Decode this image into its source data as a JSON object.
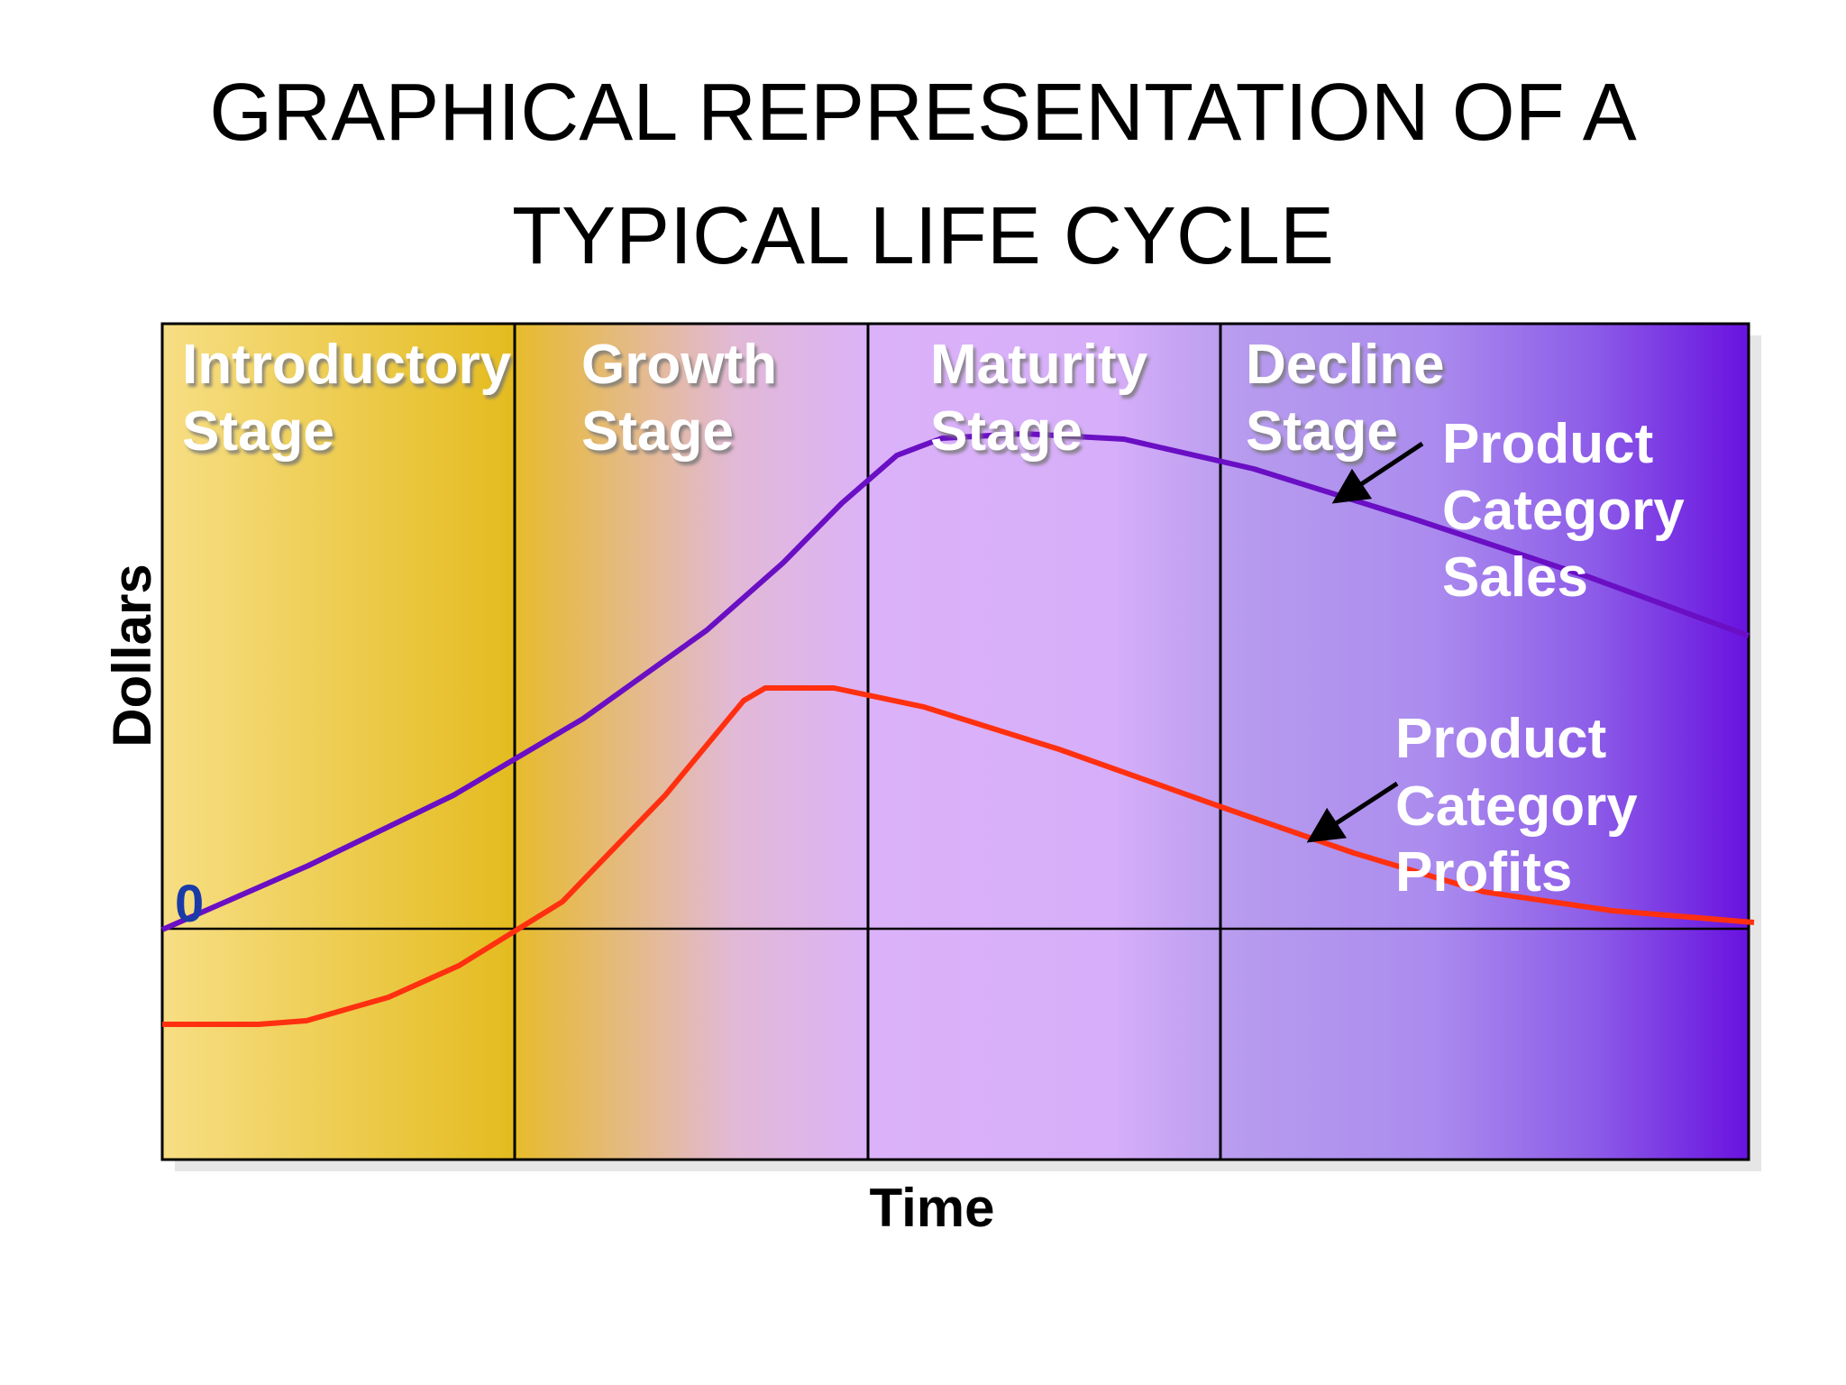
{
  "title": {
    "lines": [
      "GRAPHICAL REPRESENTATION OF A",
      "TYPICAL LIFE CYCLE"
    ]
  },
  "stages": [
    {
      "lines": [
        "Introductory",
        "Stage"
      ]
    },
    {
      "lines": [
        "Growth",
        "Stage"
      ]
    },
    {
      "lines": [
        "Maturity",
        "Stage"
      ]
    },
    {
      "lines": [
        "Decline",
        "Stage"
      ]
    }
  ],
  "curves": [
    {
      "lines": [
        "Product",
        "Category",
        "Sales"
      ]
    },
    {
      "lines": [
        "Product",
        "Category",
        "Profits"
      ]
    }
  ],
  "axes": {
    "y_label": "Dollars",
    "x_label": "Time",
    "origin_label": "0"
  }
}
